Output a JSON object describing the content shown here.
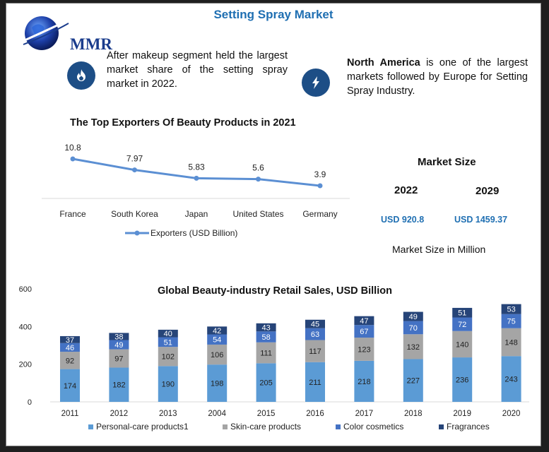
{
  "header": {
    "title": "Setting Spray Market",
    "logo_text": "MMR"
  },
  "info": {
    "left_text": "After makeup segment held the largest market share of the setting spray market in 2022.",
    "right_bold": "North America",
    "right_text": " is one of the largest markets followed by Europe for Setting Spray Industry.",
    "left_icon": "flame-icon",
    "right_icon": "lightning-bolt-icon",
    "icon_color": "#1d4e86"
  },
  "market_size": {
    "title": "Market Size",
    "year_a": "2022",
    "year_b": "2029",
    "value_a": "USD 920.8",
    "value_b": "USD 1459.37",
    "note": "Market Size in Million"
  },
  "chart_data": [
    {
      "type": "line",
      "title": "The Top Exporters Of Beauty Products in 2021",
      "categories": [
        "France",
        "South Korea",
        "Japan",
        "United States",
        "Germany"
      ],
      "series": [
        {
          "name": "Exporters (USD Billion)",
          "values": [
            10.8,
            7.97,
            5.83,
            5.6,
            3.9
          ],
          "color": "#5b8fd3"
        }
      ],
      "data_labels": [
        "10.8",
        "7.97",
        "5.83",
        "5.6",
        "3.9"
      ],
      "legend": "bottom",
      "grid": false
    },
    {
      "type": "bar",
      "stacked": true,
      "title": "Global Beauty-industry Retail Sales, USD Billion",
      "categories": [
        "2011",
        "2012",
        "2013",
        "2004",
        "2015",
        "2016",
        "2017",
        "2018",
        "2019",
        "2020"
      ],
      "ylim": [
        0,
        600
      ],
      "yticks": [
        "0",
        "200",
        "400",
        "600"
      ],
      "legend": "bottom",
      "grid": false,
      "series": [
        {
          "name": "Personal-care products1",
          "color": "#5b9bd5",
          "values": [
            174,
            182,
            190,
            198,
            205,
            211,
            218,
            227,
            236,
            243
          ]
        },
        {
          "name": "Skin-care products",
          "color": "#a5a5a5",
          "values": [
            92,
            97,
            102,
            106,
            111,
            117,
            123,
            132,
            140,
            148
          ]
        },
        {
          "name": "Color cosmetics",
          "color": "#4472c4",
          "values": [
            46,
            49,
            51,
            54,
            58,
            63,
            67,
            70,
            72,
            75
          ]
        },
        {
          "name": "Fragrances",
          "color": "#264478",
          "values": [
            37,
            38,
            40,
            42,
            43,
            45,
            47,
            49,
            51,
            53
          ]
        }
      ]
    }
  ]
}
